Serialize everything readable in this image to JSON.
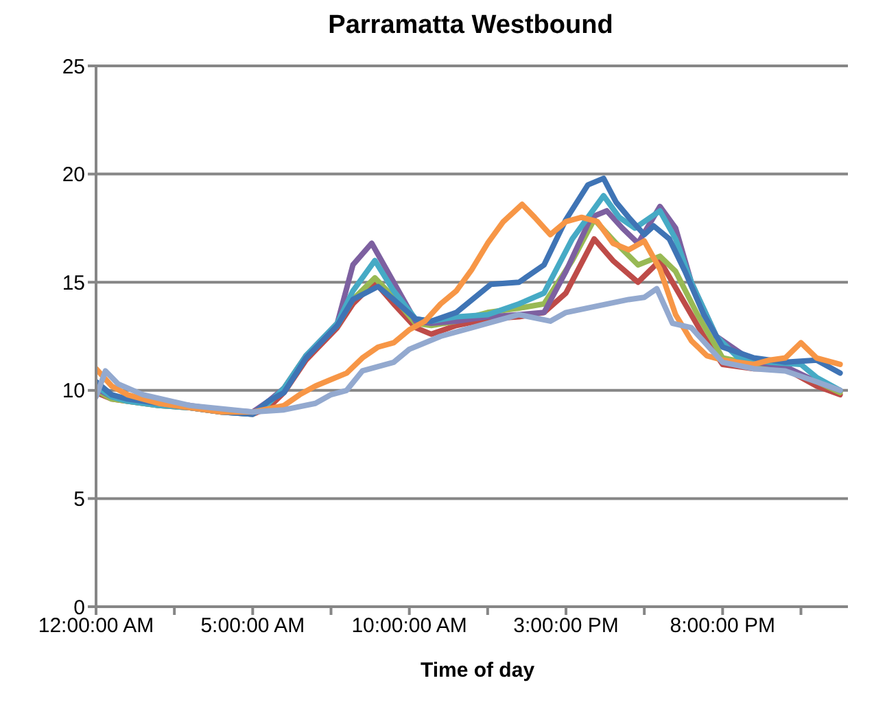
{
  "chart_data": {
    "type": "line",
    "title": "Parramatta Westbound",
    "xlabel": "Time of day",
    "xlim": [
      0,
      24
    ],
    "xticks": [
      {
        "value": 0,
        "label": "12:00:00 AM"
      },
      {
        "value": 2.5,
        "label": null
      },
      {
        "value": 5,
        "label": "5:00:00 AM"
      },
      {
        "value": 7.5,
        "label": null
      },
      {
        "value": 10,
        "label": "10:00:00 AM"
      },
      {
        "value": 12.5,
        "label": null
      },
      {
        "value": 15,
        "label": "3:00:00 PM"
      },
      {
        "value": 17.5,
        "label": null
      },
      {
        "value": 20,
        "label": "8:00:00 PM"
      },
      {
        "value": 22.5,
        "label": null
      }
    ],
    "ylim": [
      0,
      25
    ],
    "yticks": [
      0,
      5,
      10,
      15,
      20,
      25
    ],
    "grid": "y",
    "marker": "none",
    "line_style": "solid",
    "series": [
      {
        "color": "#be4b48",
        "x": [
          0,
          0.5,
          1,
          2,
          3,
          4,
          5,
          5.5,
          6,
          6.7,
          7.7,
          8.2,
          8.9,
          9.5,
          10.2,
          10.7,
          11.5,
          12.5,
          13.5,
          14.3,
          15,
          15.9,
          16.5,
          17.3,
          18,
          18.6,
          19.4,
          20,
          21,
          22,
          23,
          23.75
        ],
        "values": [
          9.9,
          9.6,
          9.5,
          9.3,
          9.2,
          9.0,
          8.9,
          9.2,
          9.9,
          11.4,
          12.9,
          14.0,
          15.0,
          14.0,
          12.9,
          12.6,
          13.0,
          13.3,
          13.4,
          13.6,
          14.5,
          17.0,
          16.0,
          15.0,
          16.0,
          14.5,
          12.5,
          11.2,
          11.0,
          11.0,
          10.2,
          9.8
        ]
      },
      {
        "color": "#98b954",
        "x": [
          0,
          0.5,
          1,
          2,
          3,
          4,
          5,
          5.5,
          6,
          6.7,
          7.7,
          8.2,
          8.9,
          9.5,
          10.2,
          10.7,
          11.5,
          12.5,
          13.5,
          14.3,
          15.2,
          15.9,
          16.6,
          17.3,
          18,
          18.5,
          19.2,
          20,
          21,
          22,
          23,
          23.75
        ],
        "values": [
          10.0,
          9.6,
          9.5,
          9.3,
          9.2,
          9.0,
          9.0,
          9.4,
          10.1,
          11.6,
          13.0,
          14.2,
          15.2,
          14.3,
          13.1,
          13.0,
          13.2,
          13.6,
          13.8,
          14.0,
          16.0,
          17.9,
          16.8,
          15.8,
          16.2,
          15.5,
          13.5,
          11.5,
          11.2,
          11.0,
          10.4,
          9.9
        ]
      },
      {
        "color": "#7d60a0",
        "x": [
          0,
          0.5,
          1,
          2,
          3,
          4,
          5,
          5.5,
          6,
          6.7,
          7.7,
          8.2,
          8.8,
          9.5,
          10.2,
          10.7,
          11.5,
          12.5,
          13.5,
          14.3,
          15,
          15.8,
          16.3,
          16.8,
          17.3,
          18,
          18.5,
          19,
          19.8,
          21,
          22,
          23,
          23.75
        ],
        "values": [
          10.1,
          9.7,
          9.6,
          9.4,
          9.3,
          9.1,
          9.0,
          9.5,
          10.1,
          11.6,
          13.1,
          15.8,
          16.8,
          15.0,
          13.2,
          13.1,
          13.2,
          13.4,
          13.5,
          13.6,
          15.5,
          18.0,
          18.3,
          17.5,
          16.8,
          18.5,
          17.5,
          15.0,
          12.5,
          11.3,
          11.1,
          10.4,
          10.0
        ]
      },
      {
        "color": "#46aac5",
        "x": [
          0,
          0.5,
          1,
          2,
          3,
          4,
          5,
          5.5,
          6,
          6.7,
          7.7,
          8.2,
          8.9,
          9.5,
          10.2,
          10.7,
          11.5,
          12.5,
          13.5,
          14.3,
          15.2,
          16.2,
          16.7,
          17.2,
          18,
          18.5,
          19,
          19.8,
          20.5,
          21.5,
          22.5,
          23,
          23.75
        ],
        "values": [
          10.2,
          9.7,
          9.5,
          9.3,
          9.2,
          9.0,
          8.9,
          9.4,
          10.1,
          11.6,
          13.1,
          14.6,
          16.0,
          14.6,
          13.3,
          13.2,
          13.4,
          13.5,
          14.0,
          14.5,
          17.0,
          19.0,
          18.0,
          17.5,
          18.3,
          17.0,
          15.0,
          12.5,
          11.5,
          11.3,
          11.2,
          10.6,
          10.0
        ]
      },
      {
        "color": "#3f74b5",
        "x": [
          0,
          0.5,
          1,
          2,
          3,
          4,
          5,
          5.5,
          6,
          6.7,
          7.7,
          8.2,
          9,
          9.5,
          10.2,
          10.7,
          11.5,
          12.6,
          13.5,
          14.3,
          15,
          15.7,
          16.2,
          16.6,
          17,
          17.5,
          17.8,
          18.3,
          18.8,
          19.4,
          20,
          21,
          22,
          23,
          23.75
        ],
        "values": [
          10.4,
          9.8,
          9.6,
          9.4,
          9.2,
          9.0,
          8.9,
          9.5,
          9.9,
          11.5,
          13.0,
          14.2,
          14.8,
          14.2,
          13.3,
          13.2,
          13.6,
          14.9,
          15.0,
          15.8,
          17.9,
          19.5,
          19.8,
          18.7,
          18.0,
          17.2,
          17.6,
          17.0,
          15.5,
          13.5,
          12.0,
          11.5,
          11.3,
          11.4,
          10.8
        ]
      },
      {
        "color": "#f79646",
        "x": [
          0,
          0.5,
          1,
          2,
          3,
          4,
          5,
          6,
          6.5,
          7,
          7.5,
          8,
          8.5,
          9,
          9.5,
          10,
          10.5,
          11,
          11.5,
          12,
          12.5,
          13,
          13.6,
          14,
          14.5,
          15,
          15.5,
          16,
          16.5,
          17,
          17.5,
          18,
          18.5,
          19,
          19.5,
          20,
          21,
          21.5,
          22,
          22.5,
          23,
          23.75
        ],
        "values": [
          11.0,
          10.2,
          9.8,
          9.4,
          9.2,
          9.0,
          9.0,
          9.3,
          9.8,
          10.2,
          10.5,
          10.8,
          11.5,
          12.0,
          12.2,
          12.8,
          13.2,
          14.0,
          14.6,
          15.6,
          16.8,
          17.8,
          18.6,
          18.0,
          17.2,
          17.8,
          18.0,
          17.8,
          16.8,
          16.5,
          16.9,
          15.6,
          13.5,
          12.3,
          11.6,
          11.4,
          11.2,
          11.4,
          11.5,
          12.2,
          11.5,
          11.2
        ]
      },
      {
        "color": "#93a9cf",
        "x": [
          0,
          0.3,
          0.7,
          1.5,
          3,
          5,
          6,
          7,
          7.5,
          8,
          8.5,
          9,
          9.5,
          10,
          11,
          12,
          13.5,
          14.5,
          15,
          16,
          17,
          17.5,
          17.9,
          18.4,
          19,
          20,
          21,
          22,
          23,
          23.75
        ],
        "values": [
          9.7,
          10.9,
          10.3,
          9.8,
          9.3,
          9.0,
          9.1,
          9.4,
          9.8,
          10.0,
          10.9,
          11.1,
          11.3,
          11.9,
          12.5,
          12.9,
          13.5,
          13.2,
          13.6,
          13.9,
          14.2,
          14.3,
          14.7,
          13.1,
          12.9,
          11.3,
          11.0,
          10.9,
          10.4,
          10.0
        ]
      }
    ]
  }
}
